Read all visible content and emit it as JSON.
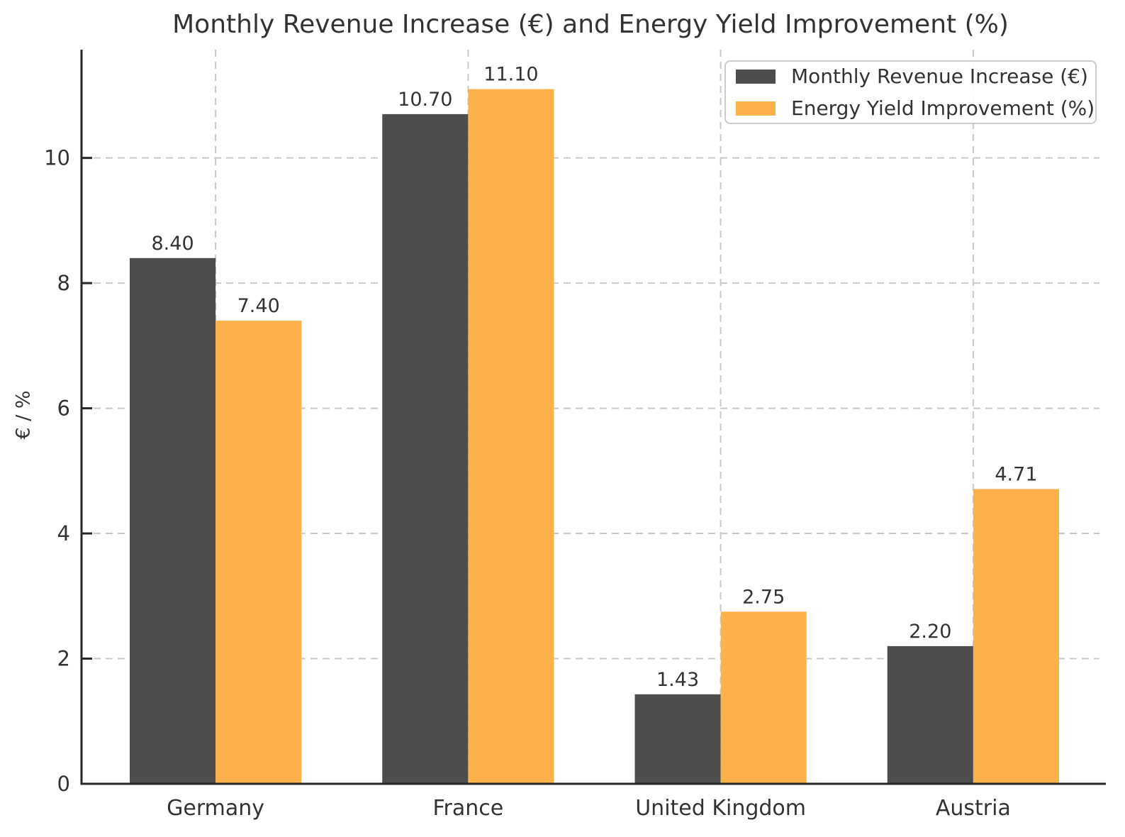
{
  "title": "Monthly Revenue Increase (€) and Energy Yield Improvement (%)",
  "colors": {
    "revenue_bar": "#4d4d4d",
    "yield_bar": "#fdb14b",
    "grid": "#c9c9c9",
    "spine": "#262626",
    "text": "#333333"
  },
  "legend": {
    "items": [
      {
        "label": "Monthly Revenue Increase (€)",
        "swatch": "revenue-swatch"
      },
      {
        "label": "Energy Yield Improvement (%)",
        "swatch": "yield-swatch"
      }
    ]
  },
  "chart_data": {
    "type": "bar",
    "title": "Monthly Revenue Increase (€) and Energy Yield Improvement (%)",
    "xlabel": "",
    "ylabel": "€ / %",
    "categories": [
      "Germany",
      "France",
      "United Kingdom",
      "Austria"
    ],
    "series": [
      {
        "name": "Monthly Revenue Increase (€)",
        "color": "#4d4d4d",
        "values": [
          8.4,
          10.7,
          1.43,
          2.2
        ],
        "value_labels": [
          "8.40",
          "10.70",
          "1.43",
          "2.20"
        ]
      },
      {
        "name": "Energy Yield Improvement (%)",
        "color": "#fdb14b",
        "values": [
          7.4,
          11.1,
          2.75,
          4.71
        ],
        "value_labels": [
          "7.40",
          "11.10",
          "2.75",
          "4.71"
        ]
      }
    ],
    "yticks": [
      0,
      2,
      4,
      6,
      8,
      10
    ],
    "ytick_labels": [
      "0",
      "2",
      "4",
      "6",
      "8",
      "10"
    ],
    "ylim": [
      0,
      11.73
    ],
    "grid": true,
    "grid_style": "dashed",
    "legend_position": "upper right",
    "bar_width_frac": 0.34
  }
}
